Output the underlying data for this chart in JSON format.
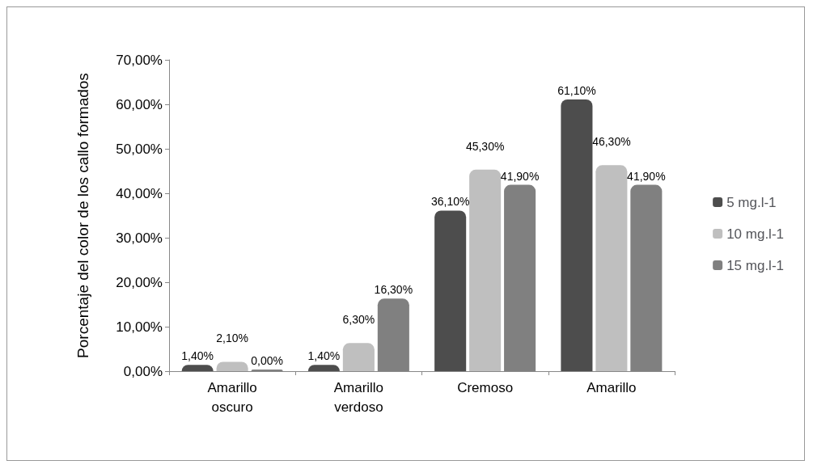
{
  "chart_data": {
    "type": "bar",
    "ylabel": "Porcentaje del color de los callo formados",
    "categories": [
      "Amarillo oscuro",
      "Amarillo verdoso",
      "Cremoso",
      "Amarillo"
    ],
    "series": [
      {
        "name": "5 mg.l-1",
        "color": "#4d4d4d",
        "values": [
          1.4,
          1.4,
          36.1,
          61.1
        ],
        "value_labels": [
          "1,40%",
          "1,40%",
          "36,10%",
          "61,10%"
        ]
      },
      {
        "name": "10 mg.l-1",
        "color": "#bfbfbf",
        "values": [
          2.1,
          6.3,
          45.3,
          46.3
        ],
        "value_labels": [
          "2,10%",
          "6,30%",
          "45,30%",
          "46,30%"
        ]
      },
      {
        "name": "15 mg.l-1",
        "color": "#808080",
        "values": [
          0,
          16.3,
          41.9,
          41.9
        ],
        "value_labels": [
          "0,00%",
          "16,30%",
          "41,90%",
          "41,90%"
        ]
      }
    ],
    "ylim": [
      0,
      70
    ],
    "yticks": [
      {
        "value": 0,
        "label": "0,00%"
      },
      {
        "value": 10,
        "label": "10,00%"
      },
      {
        "value": 20,
        "label": "20,00%"
      },
      {
        "value": 30,
        "label": "30,00%"
      },
      {
        "value": 40,
        "label": "40,00%"
      },
      {
        "value": 50,
        "label": "50,00%"
      },
      {
        "value": 60,
        "label": "60,00%"
      },
      {
        "value": 70,
        "label": "70,00%"
      }
    ],
    "grid": false,
    "legend": "right"
  }
}
